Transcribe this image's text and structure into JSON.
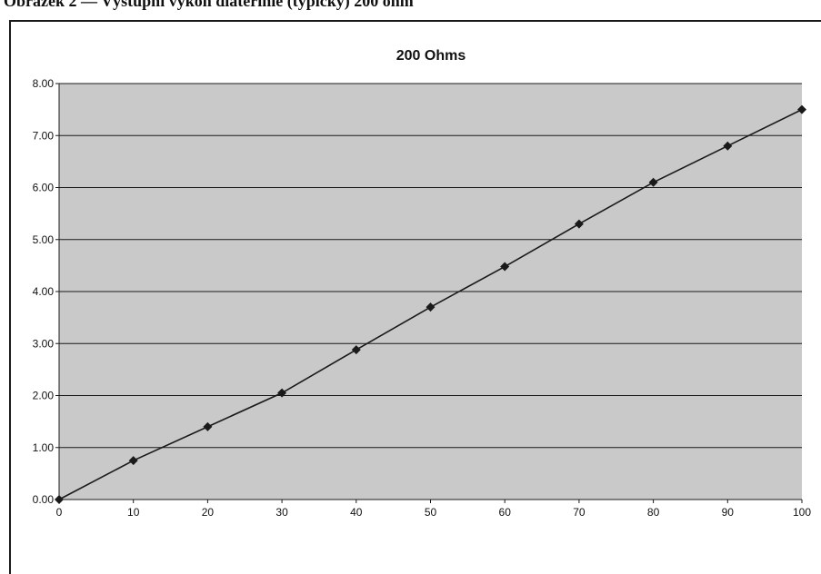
{
  "page": {
    "heading": "Obrázek 2 — Výstupní výkon diaterinie (typický) 200 ohm"
  },
  "chart_data": {
    "type": "line",
    "title": "200 Ohms",
    "xlabel": "",
    "ylabel": "",
    "x": [
      0,
      10,
      20,
      30,
      40,
      50,
      60,
      70,
      80,
      90,
      100
    ],
    "series": [
      {
        "values": [
          0.0,
          0.75,
          1.4,
          2.05,
          2.88,
          3.7,
          4.48,
          5.3,
          6.1,
          6.8,
          7.5
        ]
      }
    ],
    "xlim": [
      0,
      100
    ],
    "ylim": [
      0,
      8
    ],
    "x_ticks": [
      "0",
      "10",
      "20",
      "30",
      "40",
      "50",
      "60",
      "70",
      "80",
      "90",
      "100"
    ],
    "y_ticks": [
      "0.00",
      "1.00",
      "2.00",
      "3.00",
      "4.00",
      "5.00",
      "6.00",
      "7.00",
      "8.00"
    ],
    "grid": "horizontal",
    "legend": "none",
    "colors": {
      "plot_background": "#c9c9c9",
      "gridline": "#1a1a1a",
      "series_line": "#1a1a1a",
      "marker": "#1a1a1a"
    },
    "marker": "diamond"
  }
}
